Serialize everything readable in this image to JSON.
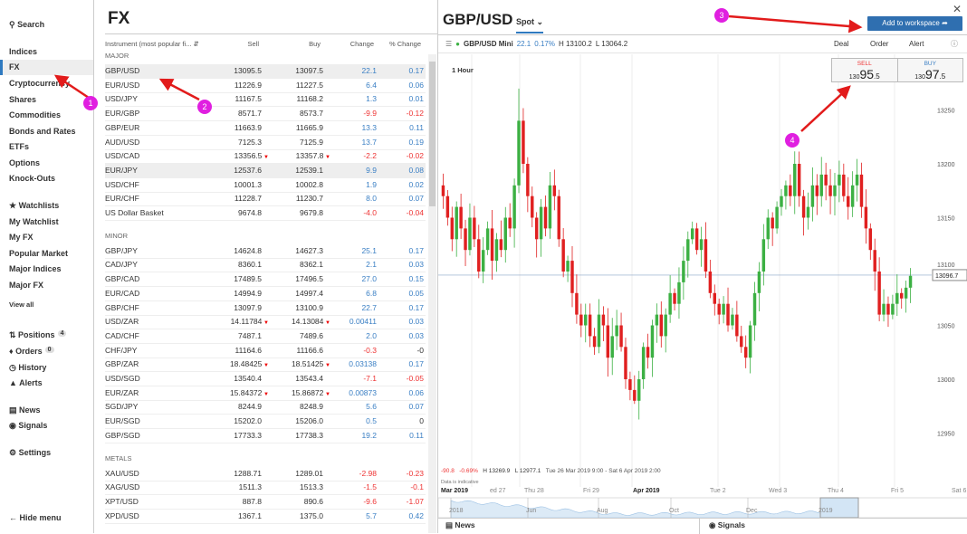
{
  "sidebar": {
    "search": "Search",
    "items": [
      "Indices",
      "FX",
      "Cryptocurrency",
      "Shares",
      "Commodities",
      "Bonds and Rates",
      "ETFs",
      "Options",
      "Knock-Outs"
    ],
    "watchlists": "Watchlists",
    "watch_items": [
      "My Watchlist",
      "My FX",
      "Popular Market",
      "Major Indices",
      "Major FX"
    ],
    "view_all": "View all",
    "positions": "Positions",
    "positions_count": "4",
    "orders": "Orders",
    "orders_count": "0",
    "history": "History",
    "alerts": "Alerts",
    "news": "News",
    "signals": "Signals",
    "settings": "Settings",
    "hide_menu": "Hide menu"
  },
  "list": {
    "title": "FX",
    "headers": [
      "Instrument (most popular fi...",
      "Sell",
      "Buy",
      "Change",
      "% Change"
    ],
    "sections": [
      {
        "name": "MAJOR",
        "rows": [
          [
            "GBP/USD",
            "13095.5",
            "13097.5",
            "22.1",
            "0.17"
          ],
          [
            "EUR/USD",
            "11226.9",
            "11227.5",
            "6.4",
            "0.06"
          ],
          [
            "USD/JPY",
            "11167.5",
            "11168.2",
            "1.3",
            "0.01"
          ],
          [
            "EUR/GBP",
            "8571.7",
            "8573.7",
            "-9.9",
            "-0.12"
          ],
          [
            "GBP/EUR",
            "11663.9",
            "11665.9",
            "13.3",
            "0.11"
          ],
          [
            "AUD/USD",
            "7125.3",
            "7125.9",
            "13.7",
            "0.19"
          ],
          [
            "USD/CAD",
            "13356.5",
            "13357.8",
            "-2.2",
            "-0.02",
            1
          ],
          [
            "EUR/JPY",
            "12537.6",
            "12539.1",
            "9.9",
            "0.08"
          ],
          [
            "USD/CHF",
            "10001.3",
            "10002.8",
            "1.9",
            "0.02"
          ],
          [
            "EUR/CHF",
            "11228.7",
            "11230.7",
            "8.0",
            "0.07"
          ],
          [
            "US Dollar Basket",
            "9674.8",
            "9679.8",
            "-4.0",
            "-0.04"
          ]
        ]
      },
      {
        "name": "MINOR",
        "rows": [
          [
            "GBP/JPY",
            "14624.8",
            "14627.3",
            "25.1",
            "0.17"
          ],
          [
            "CAD/JPY",
            "8360.1",
            "8362.1",
            "2.1",
            "0.03"
          ],
          [
            "GBP/CAD",
            "17489.5",
            "17496.5",
            "27.0",
            "0.15"
          ],
          [
            "EUR/CAD",
            "14994.9",
            "14997.4",
            "6.8",
            "0.05"
          ],
          [
            "GBP/CHF",
            "13097.9",
            "13100.9",
            "22.7",
            "0.17"
          ],
          [
            "USD/ZAR",
            "14.11784",
            "14.13084",
            "0.00411",
            "0.03",
            1
          ],
          [
            "CAD/CHF",
            "7487.1",
            "7489.6",
            "2.0",
            "0.03"
          ],
          [
            "CHF/JPY",
            "11164.6",
            "11166.6",
            "-0.3",
            "-0"
          ],
          [
            "GBP/ZAR",
            "18.48425",
            "18.51425",
            "0.03138",
            "0.17",
            1
          ],
          [
            "USD/SGD",
            "13540.4",
            "13543.4",
            "-7.1",
            "-0.05"
          ],
          [
            "EUR/ZAR",
            "15.84372",
            "15.86872",
            "0.00873",
            "0.06",
            1
          ],
          [
            "SGD/JPY",
            "8244.9",
            "8248.9",
            "5.6",
            "0.07"
          ],
          [
            "EUR/SGD",
            "15202.0",
            "15206.0",
            "0.5",
            "0"
          ],
          [
            "GBP/SGD",
            "17733.3",
            "17738.3",
            "19.2",
            "0.11"
          ]
        ]
      },
      {
        "name": "METALS",
        "rows": [
          [
            "XAU/USD",
            "1288.71",
            "1289.01",
            "-2.98",
            "-0.23"
          ],
          [
            "XAG/USD",
            "1511.3",
            "1513.3",
            "-1.5",
            "-0.1"
          ],
          [
            "XPT/USD",
            "887.8",
            "890.6",
            "-9.6",
            "-1.07"
          ],
          [
            "XPD/USD",
            "1367.1",
            "1375.0",
            "5.7",
            "0.42"
          ]
        ]
      }
    ]
  },
  "detail": {
    "title": "GBP/USD",
    "spot": "Spot",
    "add": "Add to workspace",
    "instrument": "GBP/USD Mini",
    "change": "22.1",
    "pct": "0.17%",
    "high": "H 13100.2",
    "low": "L 13064.2",
    "deal": "Deal",
    "order": "Order",
    "alert": "Alert",
    "interval": "1 Hour",
    "sell_label": "SELL",
    "sell_big": "130",
    "sell_main": "95",
    "sell_small": ".5",
    "buy_label": "BUY",
    "buy_big": "130",
    "buy_main": "97",
    "buy_small": ".5",
    "range_change": "-90.8",
    "range_pct": "-0.69%",
    "range_high": "H 13269.9",
    "range_low": "L 12977.1",
    "range_dates": "Tue 26 Mar 2019 9:00 - Sat 6 Apr 2019 2:00",
    "indicative": "Data is indicative",
    "date_labels": [
      "Mar 2019",
      "ed 27",
      "Thu 28",
      "Fri 29",
      "Apr 2019",
      "Tue 2",
      "Wed 3",
      "Thu 4",
      "Fri 5",
      "Sat 6"
    ],
    "nav_labels": [
      "2018",
      "Jun",
      "Aug",
      "Oct",
      "Dec",
      "2019"
    ],
    "news": "News",
    "signals": "Signals"
  },
  "chart_data": {
    "type": "candlestick",
    "price_ticks": [
      13250,
      13200,
      13150,
      13100,
      13050,
      13000,
      12950
    ],
    "current_price": "13096.7",
    "ylim": [
      12925,
      13310
    ],
    "up_color": "#3cb043",
    "down_color": "#e02020",
    "closes": [
      13170,
      13150,
      13130,
      13160,
      13140,
      13120,
      13150,
      13130,
      13100,
      13120,
      13140,
      13110,
      13130,
      13120,
      13150,
      13140,
      13180,
      13240,
      13200,
      13170,
      13150,
      13130,
      13160,
      13140,
      13180,
      13170,
      13130,
      13100,
      13110,
      13080,
      13060,
      13050,
      13060,
      13040,
      13030,
      13060,
      13050,
      13020,
      13040,
      13050,
      13030,
      13000,
      12990,
      12980,
      13000,
      13030,
      13020,
      13050,
      13060,
      13040,
      13060,
      13080,
      13070,
      13090,
      13110,
      13130,
      13140,
      13120,
      13130,
      13100,
      13080,
      13070,
      13060,
      13070,
      13050,
      13060,
      13040,
      13030,
      13020,
      13050,
      13080,
      13100,
      13130,
      13150,
      13140,
      13160,
      13170,
      13180,
      13170,
      13200,
      13170,
      13150,
      13160,
      13180,
      13170,
      13190,
      13180,
      13170,
      13180,
      13190,
      13170,
      13160,
      13180,
      13190,
      13160,
      13140,
      13120,
      13100,
      13060,
      13070,
      13060,
      13070,
      13080,
      13075,
      13085,
      13096
    ]
  },
  "annotations": [
    "1",
    "2",
    "3",
    "4"
  ]
}
